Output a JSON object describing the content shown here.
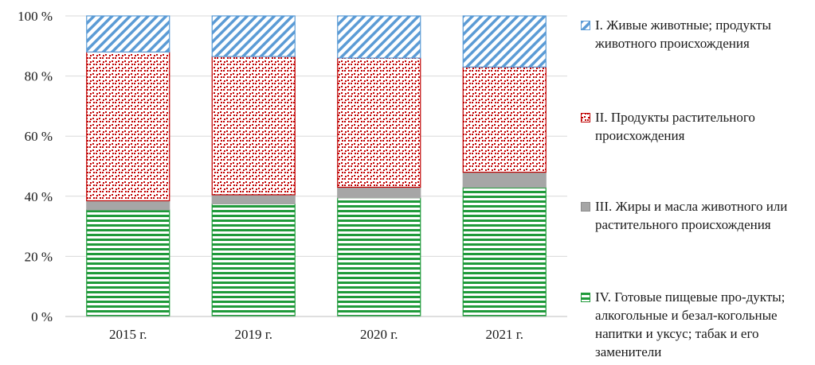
{
  "chart_data": {
    "type": "bar",
    "stacked": true,
    "percent": true,
    "categories": [
      "2015 г.",
      "2019 г.",
      "2020 г.",
      "2021 г."
    ],
    "series": [
      {
        "name": "IV. Готовые пищевые продукты; алкогольные и безалкогольные напитки и уксус; табак и его заменители",
        "legend_label": "IV. Готовые пищевые про-дукты; алкогольные и безал-когольные напитки и уксус; табак и его заменители",
        "values": [
          35.5,
          37.5,
          39.5,
          43
        ],
        "color": "#1f9a3a",
        "pattern": "horizontal-stripes"
      },
      {
        "name": "III. Жиры и масла животного или растительного происхождения",
        "legend_label": "III. Жиры и масла животного или растительного происхождения",
        "values": [
          3,
          3,
          3.5,
          5
        ],
        "color": "#a6a6a6",
        "pattern": "solid"
      },
      {
        "name": "II. Продукты растительного происхождения",
        "legend_label": "II. Продукты растительного происхождения",
        "values": [
          49.5,
          46,
          43,
          35
        ],
        "color": "#c00000",
        "pattern": "dots"
      },
      {
        "name": "I. Живые животные; продукты животного происхождения",
        "legend_label": "I. Живые животные; продукты животного происхождения",
        "values": [
          12,
          13.5,
          14,
          17
        ],
        "color": "#5b9bd5",
        "pattern": "diagonal-stripes"
      }
    ],
    "ylim": [
      0,
      100
    ],
    "yticks": [
      0,
      20,
      40,
      60,
      80,
      100
    ],
    "ytick_labels": [
      "0 %",
      "20 %",
      "40 %",
      "60 %",
      "80 %",
      "100 %"
    ],
    "grid": true,
    "legend_position": "right",
    "title": "",
    "xlabel": "",
    "ylabel": ""
  }
}
